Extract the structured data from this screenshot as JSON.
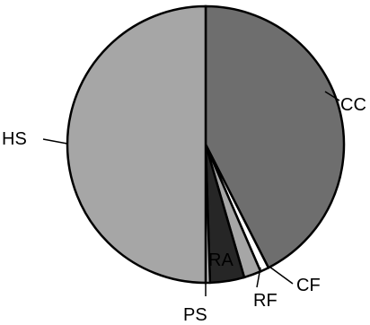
{
  "chart_data": {
    "type": "pie",
    "title": "",
    "slices": [
      {
        "label": "CC",
        "value": 42.5,
        "color": "#6e6e6e"
      },
      {
        "label": "CF",
        "value": 1.0,
        "color": "#ffffff"
      },
      {
        "label": "RF",
        "value": 2.0,
        "color": "#a6a6a6"
      },
      {
        "label": "RA",
        "value": 4.0,
        "color": "#262626"
      },
      {
        "label": "PS",
        "value": 0.5,
        "color": "#bfbfbf"
      },
      {
        "label": "HS",
        "value": 50.0,
        "color": "#a6a6a6"
      }
    ],
    "start": "12 o'clock",
    "direction": "clockwise",
    "legend": "none"
  }
}
